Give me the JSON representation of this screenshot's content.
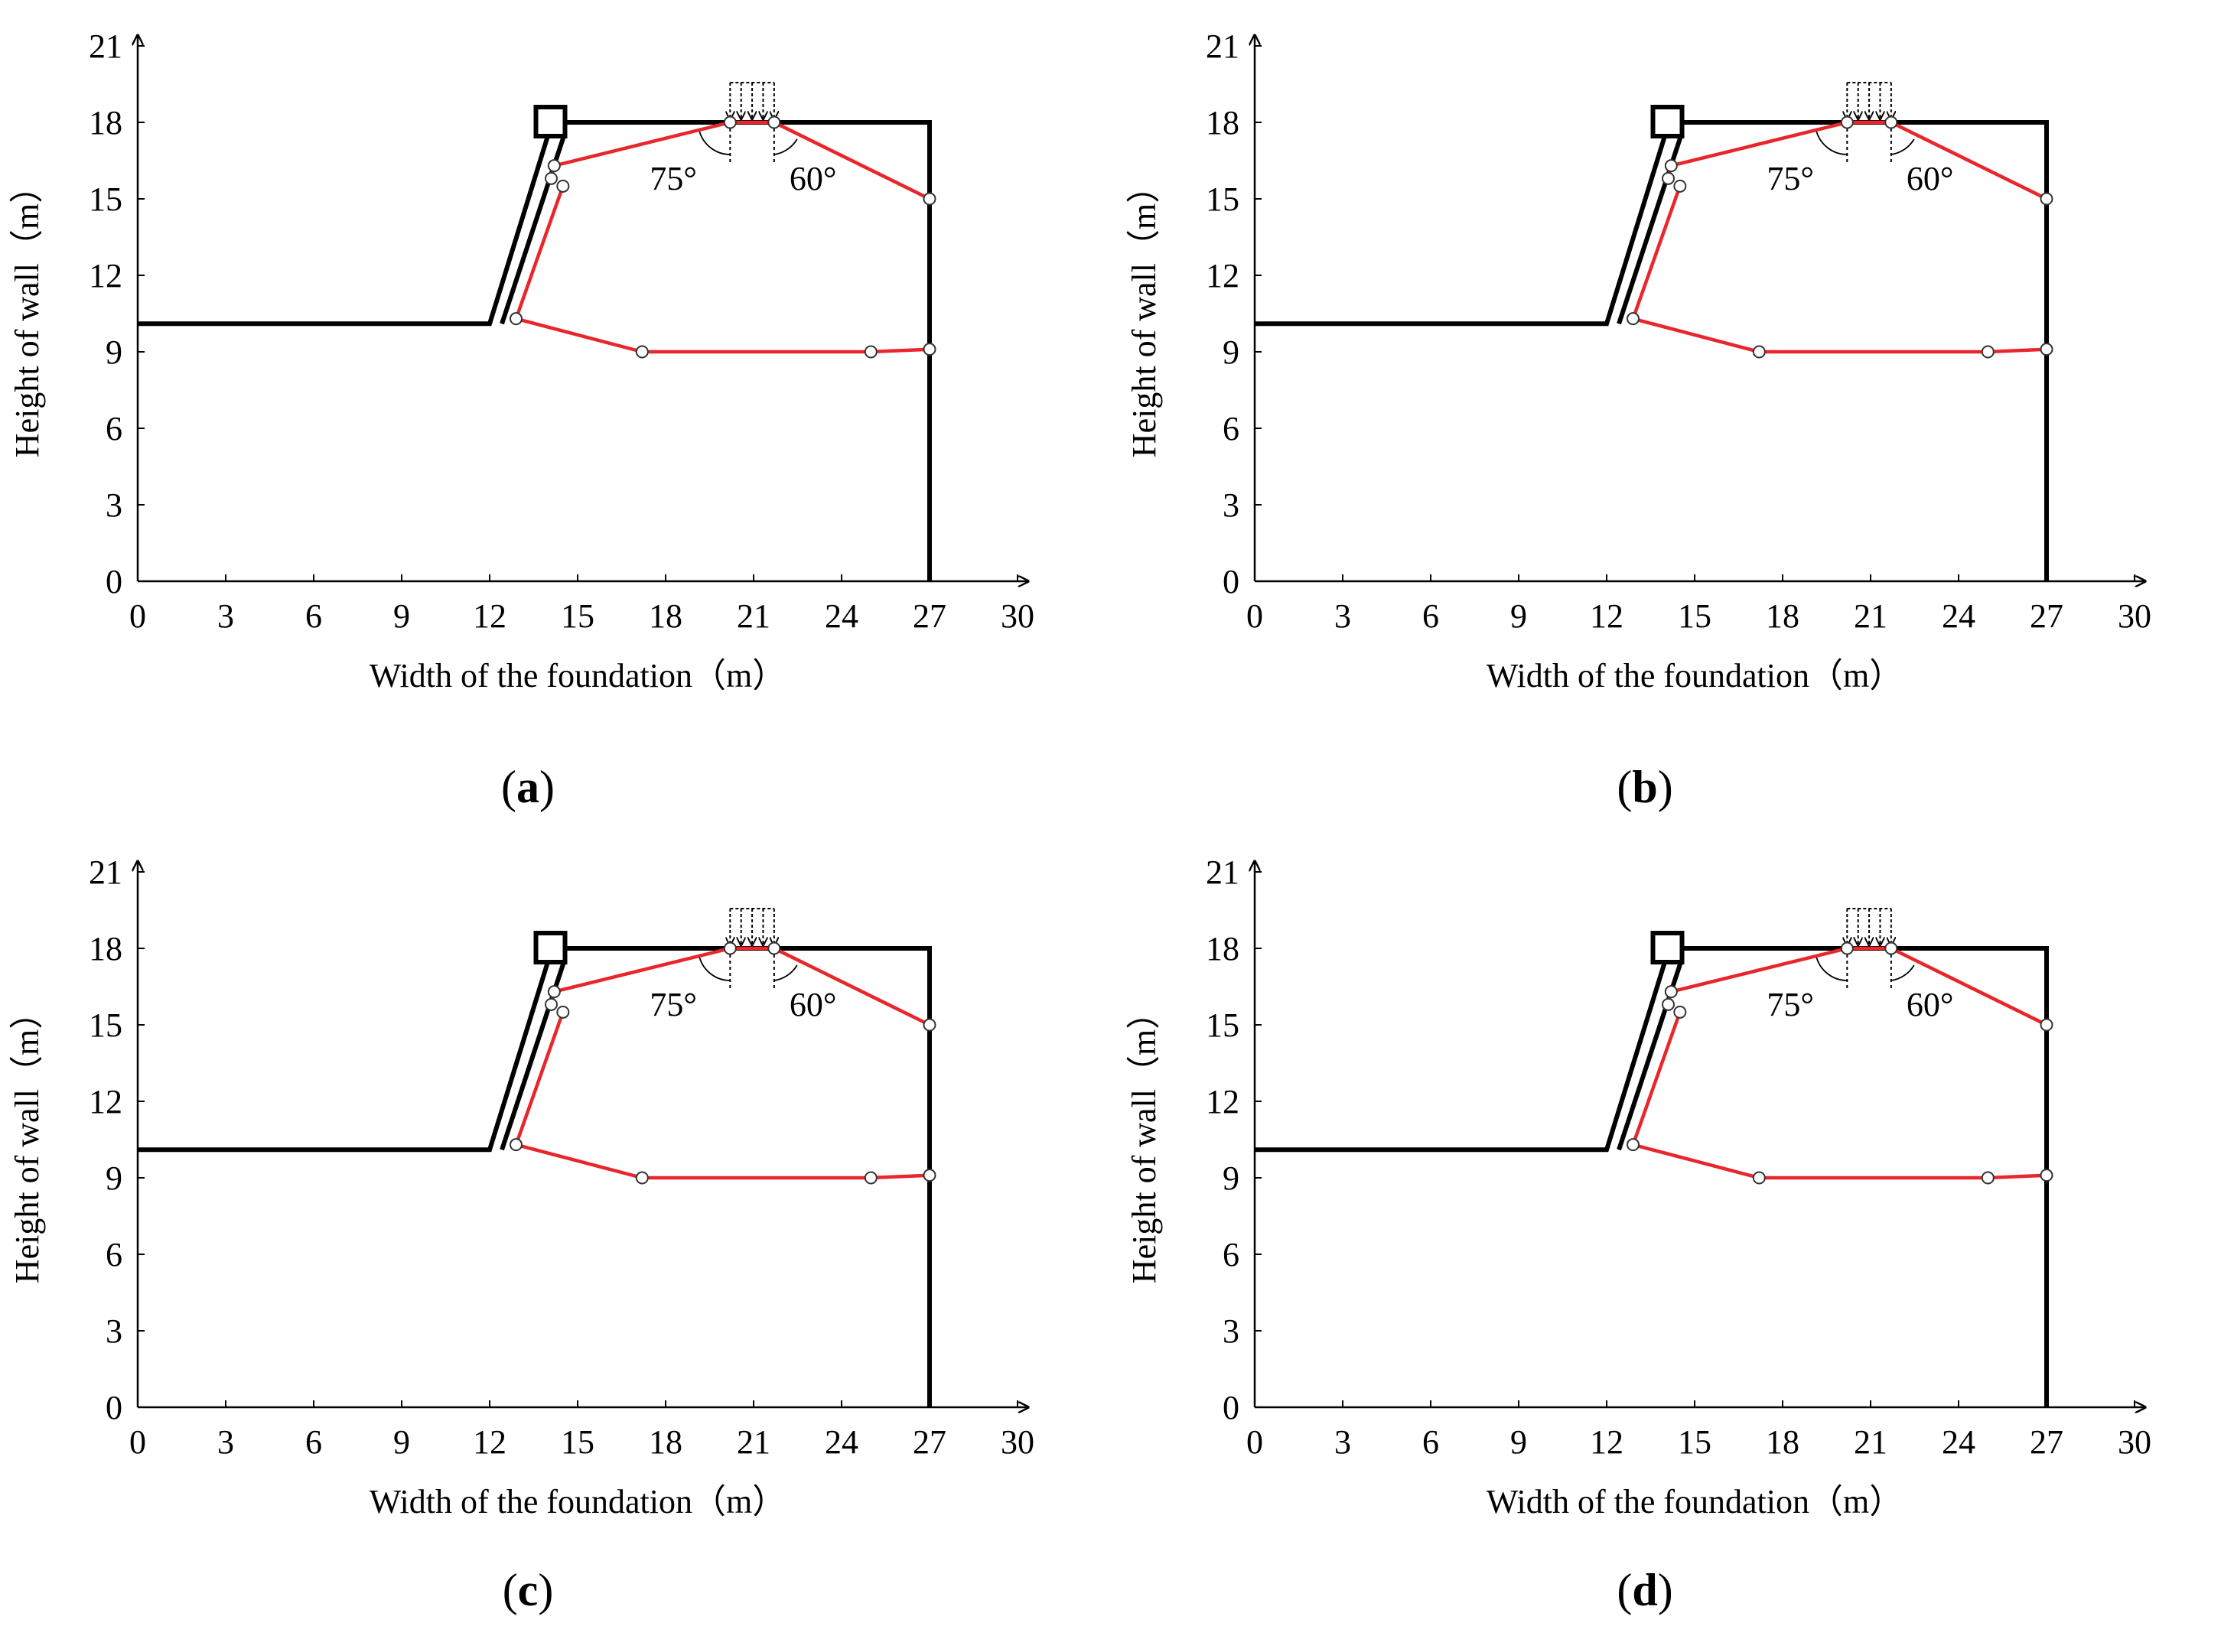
{
  "chart_data": [
    {
      "type": "line",
      "panel_label": "a",
      "xlabel": "Width of the foundation（m）",
      "ylabel": "Height of wall（m）",
      "xlim": [
        0,
        30
      ],
      "ylim": [
        0,
        21
      ],
      "xticks": [
        0,
        3,
        6,
        9,
        12,
        15,
        18,
        21,
        24,
        27,
        30
      ],
      "yticks": [
        0,
        3,
        6,
        9,
        12,
        15,
        18,
        21
      ],
      "boundary": {
        "x": [
          0,
          12,
          14.1,
          14.1,
          27,
          27
        ],
        "y": [
          10.1,
          10.1,
          17.9,
          18.0,
          18.0,
          0
        ]
      },
      "slip_surface": {
        "x": [
          14.5,
          12.9,
          17.2,
          25.0,
          27.0
        ],
        "y": [
          15.5,
          10.3,
          9.0,
          9.0,
          9.1
        ]
      },
      "wedge": {
        "x": [
          14.1,
          14.2,
          20.2,
          21.7,
          27.0
        ],
        "y": [
          15.8,
          16.3,
          18.0,
          18.0,
          15.0
        ]
      },
      "load": {
        "x_start": 20.2,
        "x_end": 21.7
      },
      "annotations": [
        "75°",
        "60°"
      ]
    },
    {
      "type": "line",
      "panel_label": "b",
      "xlabel": "Width of the foundation（m）",
      "ylabel": "Height of wall（m）",
      "xlim": [
        0,
        30
      ],
      "ylim": [
        0,
        21
      ],
      "xticks": [
        0,
        3,
        6,
        9,
        12,
        15,
        18,
        21,
        24,
        27,
        30
      ],
      "yticks": [
        0,
        3,
        6,
        9,
        12,
        15,
        18,
        21
      ],
      "boundary": {
        "x": [
          0,
          12,
          14.1,
          14.1,
          27,
          27
        ],
        "y": [
          10.1,
          10.1,
          17.9,
          18.0,
          18.0,
          0
        ]
      },
      "slip_surface": {
        "x": [
          14.5,
          12.9,
          17.2,
          25.0,
          27.0
        ],
        "y": [
          15.5,
          10.3,
          9.0,
          9.0,
          9.1
        ]
      },
      "wedge": {
        "x": [
          14.1,
          14.2,
          20.2,
          21.7,
          27.0
        ],
        "y": [
          15.8,
          16.3,
          18.0,
          18.0,
          15.0
        ]
      },
      "load": {
        "x_start": 20.2,
        "x_end": 21.7
      },
      "annotations": [
        "75°",
        "60°"
      ]
    },
    {
      "type": "line",
      "panel_label": "c",
      "xlabel": "Width of the foundation（m）",
      "ylabel": "Height of wall（m）",
      "xlim": [
        0,
        30
      ],
      "ylim": [
        0,
        21
      ],
      "xticks": [
        0,
        3,
        6,
        9,
        12,
        15,
        18,
        21,
        24,
        27,
        30
      ],
      "yticks": [
        0,
        3,
        6,
        9,
        12,
        15,
        18,
        21
      ],
      "boundary": {
        "x": [
          0,
          12,
          14.1,
          14.1,
          27,
          27
        ],
        "y": [
          10.1,
          10.1,
          17.9,
          18.0,
          18.0,
          0
        ]
      },
      "slip_surface": {
        "x": [
          14.5,
          12.9,
          17.2,
          25.0,
          27.0
        ],
        "y": [
          15.5,
          10.3,
          9.0,
          9.0,
          9.1
        ]
      },
      "wedge": {
        "x": [
          14.1,
          14.2,
          20.2,
          21.7,
          27.0
        ],
        "y": [
          15.8,
          16.3,
          18.0,
          18.0,
          15.0
        ]
      },
      "load": {
        "x_start": 20.2,
        "x_end": 21.7
      },
      "annotations": [
        "75°",
        "60°"
      ]
    },
    {
      "type": "line",
      "panel_label": "d",
      "xlabel": "Width of the foundation（m）",
      "ylabel": "Height of wall（m）",
      "xlim": [
        0,
        30
      ],
      "ylim": [
        0,
        21
      ],
      "xticks": [
        0,
        3,
        6,
        9,
        12,
        15,
        18,
        21,
        24,
        27,
        30
      ],
      "yticks": [
        0,
        3,
        6,
        9,
        12,
        15,
        18,
        21
      ],
      "boundary": {
        "x": [
          0,
          12,
          14.1,
          14.1,
          27,
          27
        ],
        "y": [
          10.1,
          10.1,
          17.9,
          18.0,
          18.0,
          0
        ]
      },
      "slip_surface": {
        "x": [
          14.5,
          12.9,
          17.2,
          25.0,
          27.0
        ],
        "y": [
          15.5,
          10.3,
          9.0,
          9.0,
          9.1
        ]
      },
      "wedge": {
        "x": [
          14.1,
          14.2,
          20.2,
          21.7,
          27.0
        ],
        "y": [
          15.8,
          16.3,
          18.0,
          18.0,
          15.0
        ]
      },
      "load": {
        "x_start": 20.2,
        "x_end": 21.7
      },
      "annotations": [
        "75°",
        "60°"
      ]
    }
  ],
  "colors": {
    "slip_line": "#e8262b",
    "boundary": "#000000",
    "node_fill": "#ffffff"
  }
}
